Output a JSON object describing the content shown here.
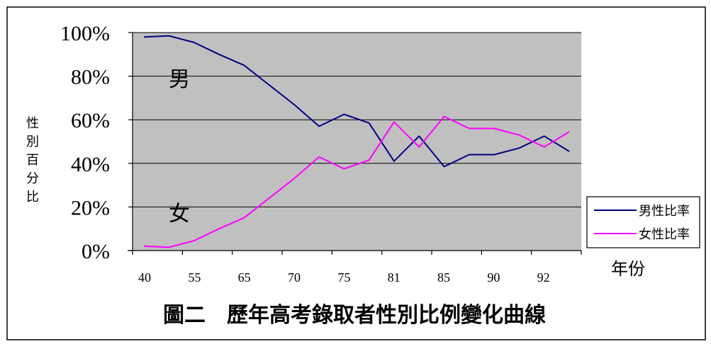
{
  "chart_data": {
    "type": "line",
    "title": "圖二　歷年高考錄取者性別比例變化曲線",
    "xlabel": "年份",
    "ylabel": "性別百分比",
    "tick_labels_y": [
      "0%",
      "20%",
      "40%",
      "60%",
      "80%",
      "100%"
    ],
    "tick_labels_x": [
      "40",
      "55",
      "65",
      "70",
      "75",
      "81",
      "85",
      "90",
      "92"
    ],
    "ylim": [
      0,
      100
    ],
    "grid": true,
    "legend_position": "right",
    "annotations": [
      "男",
      "女"
    ],
    "series": [
      {
        "name": "男性比率",
        "color": "#000080",
        "values": [
          98,
          98.5,
          95.5,
          90,
          85,
          76,
          67,
          57,
          62.5,
          58.5,
          41,
          52.5,
          38.5,
          44,
          44,
          47,
          52.5,
          45.5
        ]
      },
      {
        "name": "女性比率",
        "color": "#ff00ff",
        "values": [
          2,
          1.5,
          4.5,
          10,
          15,
          24,
          33,
          43,
          37.5,
          41.5,
          59,
          47.5,
          61.5,
          56,
          56,
          53,
          47.5,
          54.5
        ]
      }
    ]
  }
}
